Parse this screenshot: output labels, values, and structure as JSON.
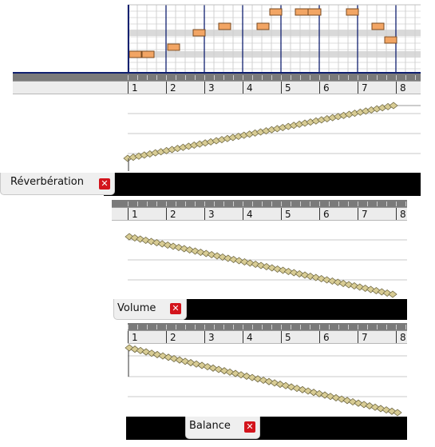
{
  "ruler": {
    "measures": [
      "1",
      "2",
      "3",
      "4",
      "5",
      "6",
      "7",
      "8"
    ]
  },
  "tracks": {
    "reverb": {
      "label": "Réverbération",
      "close_icon": "✕"
    },
    "volume": {
      "label": "Volume",
      "close_icon": "✕"
    },
    "balance": {
      "label": "Balance",
      "close_icon": "✕"
    }
  },
  "colors": {
    "note_fill": "#f2a564",
    "automation_point": "#d8cc94",
    "bar_line": "#102070"
  },
  "icons": {
    "close": "close-icon"
  }
}
